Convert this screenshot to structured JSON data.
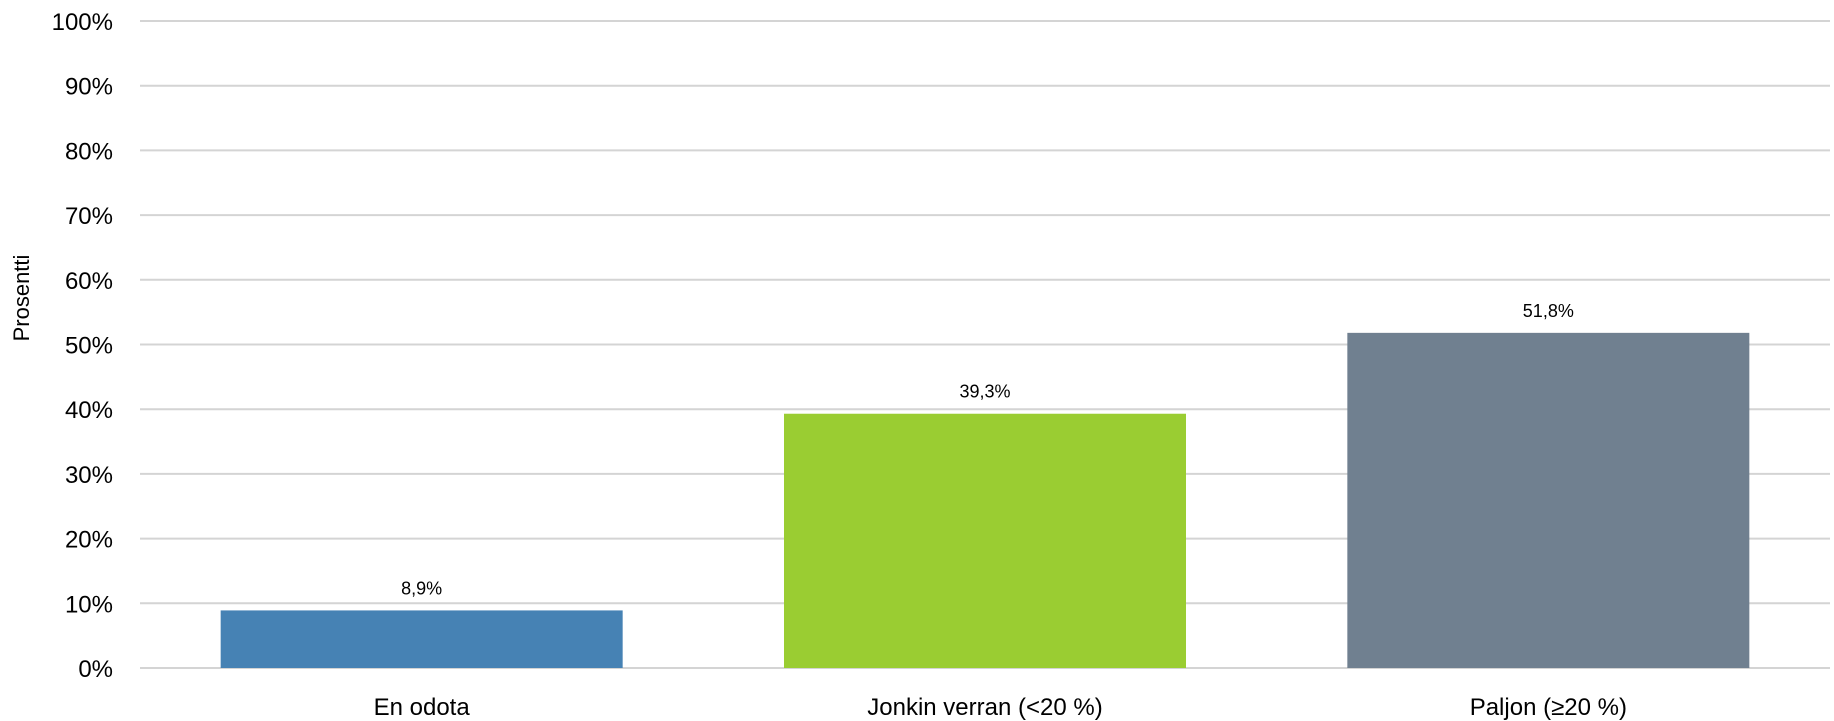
{
  "chart_data": {
    "type": "bar",
    "title": "",
    "xlabel": "",
    "ylabel": "Prosentti",
    "categories": [
      "En odota",
      "Jonkin verran (<20 %)",
      "Paljon (≥20 %)"
    ],
    "values": [
      8.9,
      39.3,
      51.8
    ],
    "data_labels": [
      "8,9%",
      "39,3%",
      "51,8%"
    ],
    "bar_colors": [
      "#4682b4",
      "#9acd32",
      "#708090"
    ],
    "ylim": [
      0,
      100
    ],
    "yticks": [
      0,
      10,
      20,
      30,
      40,
      50,
      60,
      70,
      80,
      90,
      100
    ],
    "ytick_labels": [
      "0%",
      "10%",
      "20%",
      "30%",
      "40%",
      "50%",
      "60%",
      "70%",
      "80%",
      "90%",
      "100%"
    ],
    "grid": true,
    "gridline_color": "#d4d4d4",
    "legend": "none"
  }
}
